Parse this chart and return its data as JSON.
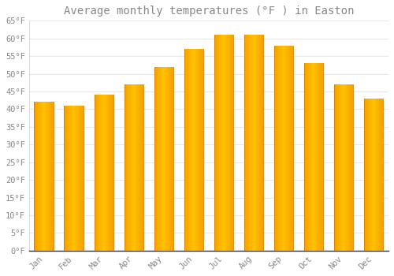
{
  "title": "Average monthly temperatures (°F ) in Easton",
  "months": [
    "Jan",
    "Feb",
    "Mar",
    "Apr",
    "May",
    "Jun",
    "Jul",
    "Aug",
    "Sep",
    "Oct",
    "Nov",
    "Dec"
  ],
  "values": [
    42,
    41,
    44,
    47,
    52,
    57,
    61,
    61,
    58,
    53,
    47,
    43
  ],
  "bar_color_center": "#FFC200",
  "bar_color_edge": "#F5A000",
  "background_color": "#FFFFFF",
  "grid_color": "#E8E8E8",
  "ylim": [
    0,
    65
  ],
  "yticks": [
    0,
    5,
    10,
    15,
    20,
    25,
    30,
    35,
    40,
    45,
    50,
    55,
    60,
    65
  ],
  "title_fontsize": 10,
  "tick_fontsize": 7.5,
  "tick_font_color": "#888888",
  "tick_font_family": "monospace",
  "spine_color": "#CCCCCC"
}
